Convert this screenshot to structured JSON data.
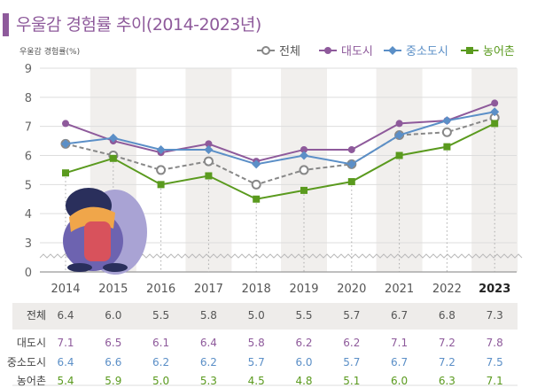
{
  "title": "우울감 경험률 추이(2014-2023년)",
  "chart_data": {
    "type": "line",
    "title": "우울감 경험률 추이(2014-2023년)",
    "ylabel": "우울감 경험률(%)",
    "xlabel": "",
    "ylim": [
      0,
      9
    ],
    "y_axis_break": "between 0 and 3",
    "yticks": [
      "0",
      "3",
      "4",
      "5",
      "6",
      "7",
      "8",
      "9"
    ],
    "categories": [
      "2014",
      "2015",
      "2016",
      "2017",
      "2018",
      "2019",
      "2020",
      "2021",
      "2022",
      "2023"
    ],
    "legend_position": "top-right",
    "grid": true,
    "series": [
      {
        "name": "전체",
        "values": [
          6.4,
          6.0,
          5.5,
          5.8,
          5.0,
          5.5,
          5.7,
          6.7,
          6.8,
          7.3
        ],
        "color": "#888888",
        "marker": "open-circle",
        "dash": true
      },
      {
        "name": "대도시",
        "values": [
          7.1,
          6.5,
          6.1,
          6.4,
          5.8,
          6.2,
          6.2,
          7.1,
          7.2,
          7.8
        ],
        "color": "#8e5a9b",
        "marker": "circle"
      },
      {
        "name": "중소도시",
        "values": [
          6.4,
          6.6,
          6.2,
          6.2,
          5.7,
          6.0,
          5.7,
          6.7,
          7.2,
          7.5
        ],
        "color": "#5b8fc7",
        "marker": "diamond"
      },
      {
        "name": "농어촌",
        "values": [
          5.4,
          5.9,
          5.0,
          5.3,
          4.5,
          4.8,
          5.1,
          6.0,
          6.3,
          7.1
        ],
        "color": "#5a9a1e",
        "marker": "square"
      }
    ]
  }
}
